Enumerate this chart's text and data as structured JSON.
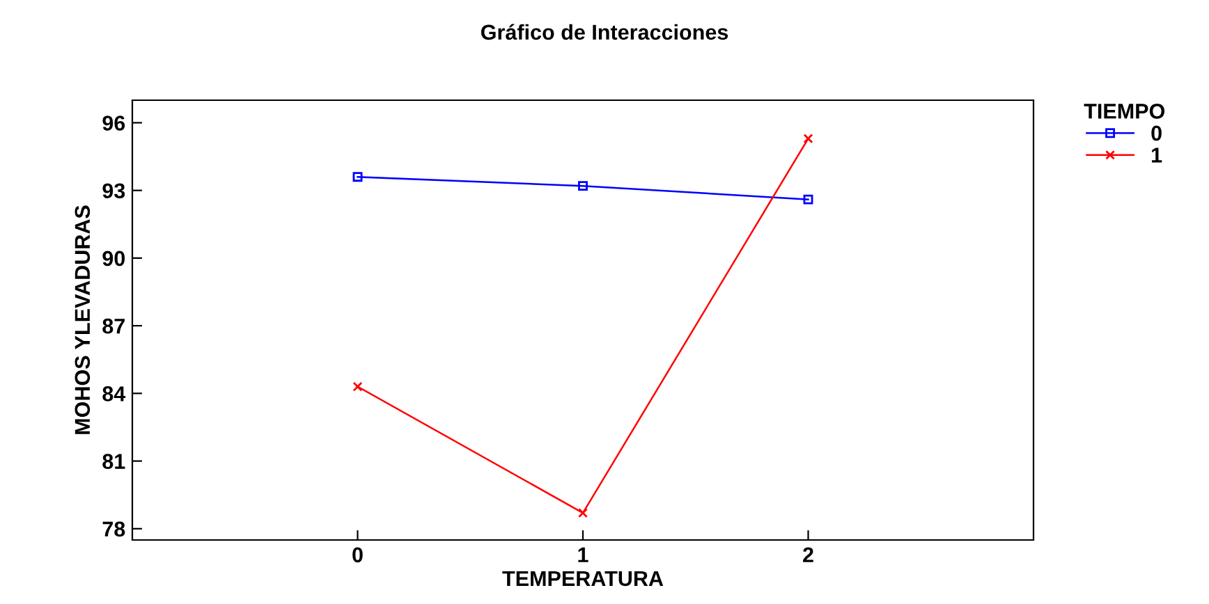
{
  "chart_data": {
    "type": "line",
    "title": "Gráfico de Interacciones",
    "xlabel": "TEMPERATURA",
    "ylabel": "MOHOS YLEVADURAS",
    "legend_title": "TIEMPO",
    "x": [
      0,
      1,
      2
    ],
    "series": [
      {
        "name": "0",
        "color": "#0000ff",
        "marker": "square",
        "values": [
          93.6,
          93.2,
          92.6
        ]
      },
      {
        "name": "1",
        "color": "#ff0000",
        "marker": "cross",
        "values": [
          84.3,
          78.7,
          95.3
        ]
      }
    ],
    "xlim": [
      -1,
      3
    ],
    "xticks": [
      0,
      1,
      2
    ],
    "ylim": [
      77.5,
      97
    ],
    "yticks": [
      78,
      81,
      84,
      87,
      90,
      93,
      96
    ],
    "grid": false,
    "legend": "top right"
  }
}
